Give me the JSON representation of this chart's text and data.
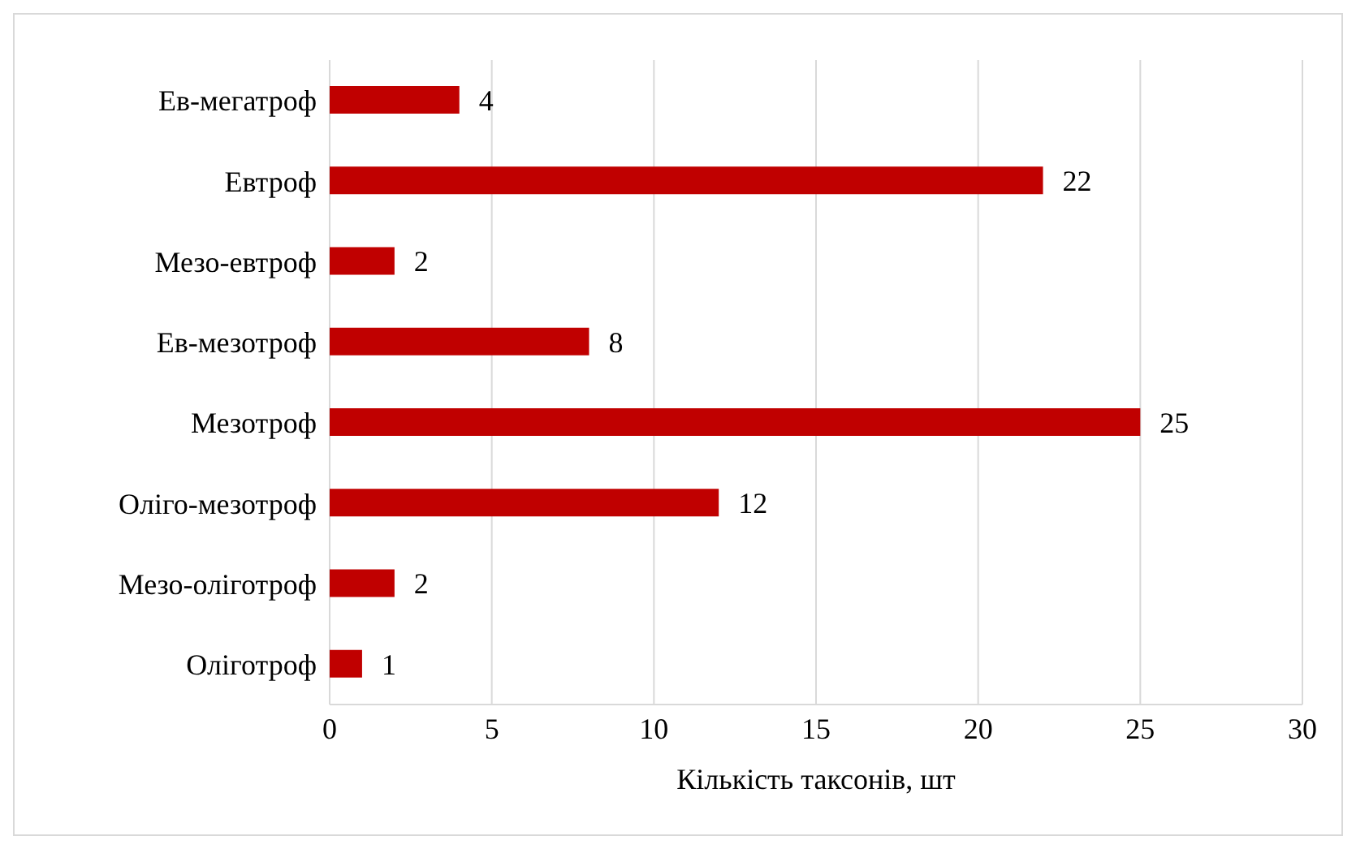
{
  "chart_data": {
    "type": "bar",
    "orientation": "horizontal",
    "categories": [
      "Ев-мегатроф",
      "Евтроф",
      "Мезо-евтроф",
      "Ев-мезотроф",
      "Мезотроф",
      "Оліго-мезотроф",
      "Мезо-оліготроф",
      "Оліготроф"
    ],
    "values": [
      4,
      22,
      2,
      8,
      25,
      12,
      2,
      1
    ],
    "color": "#c00000",
    "xlim": [
      0,
      30
    ],
    "xticks": [
      0,
      5,
      10,
      15,
      20,
      25,
      30
    ],
    "grid": "x",
    "data_labels": true,
    "xlabel": "Кількість таксонів, шт"
  }
}
